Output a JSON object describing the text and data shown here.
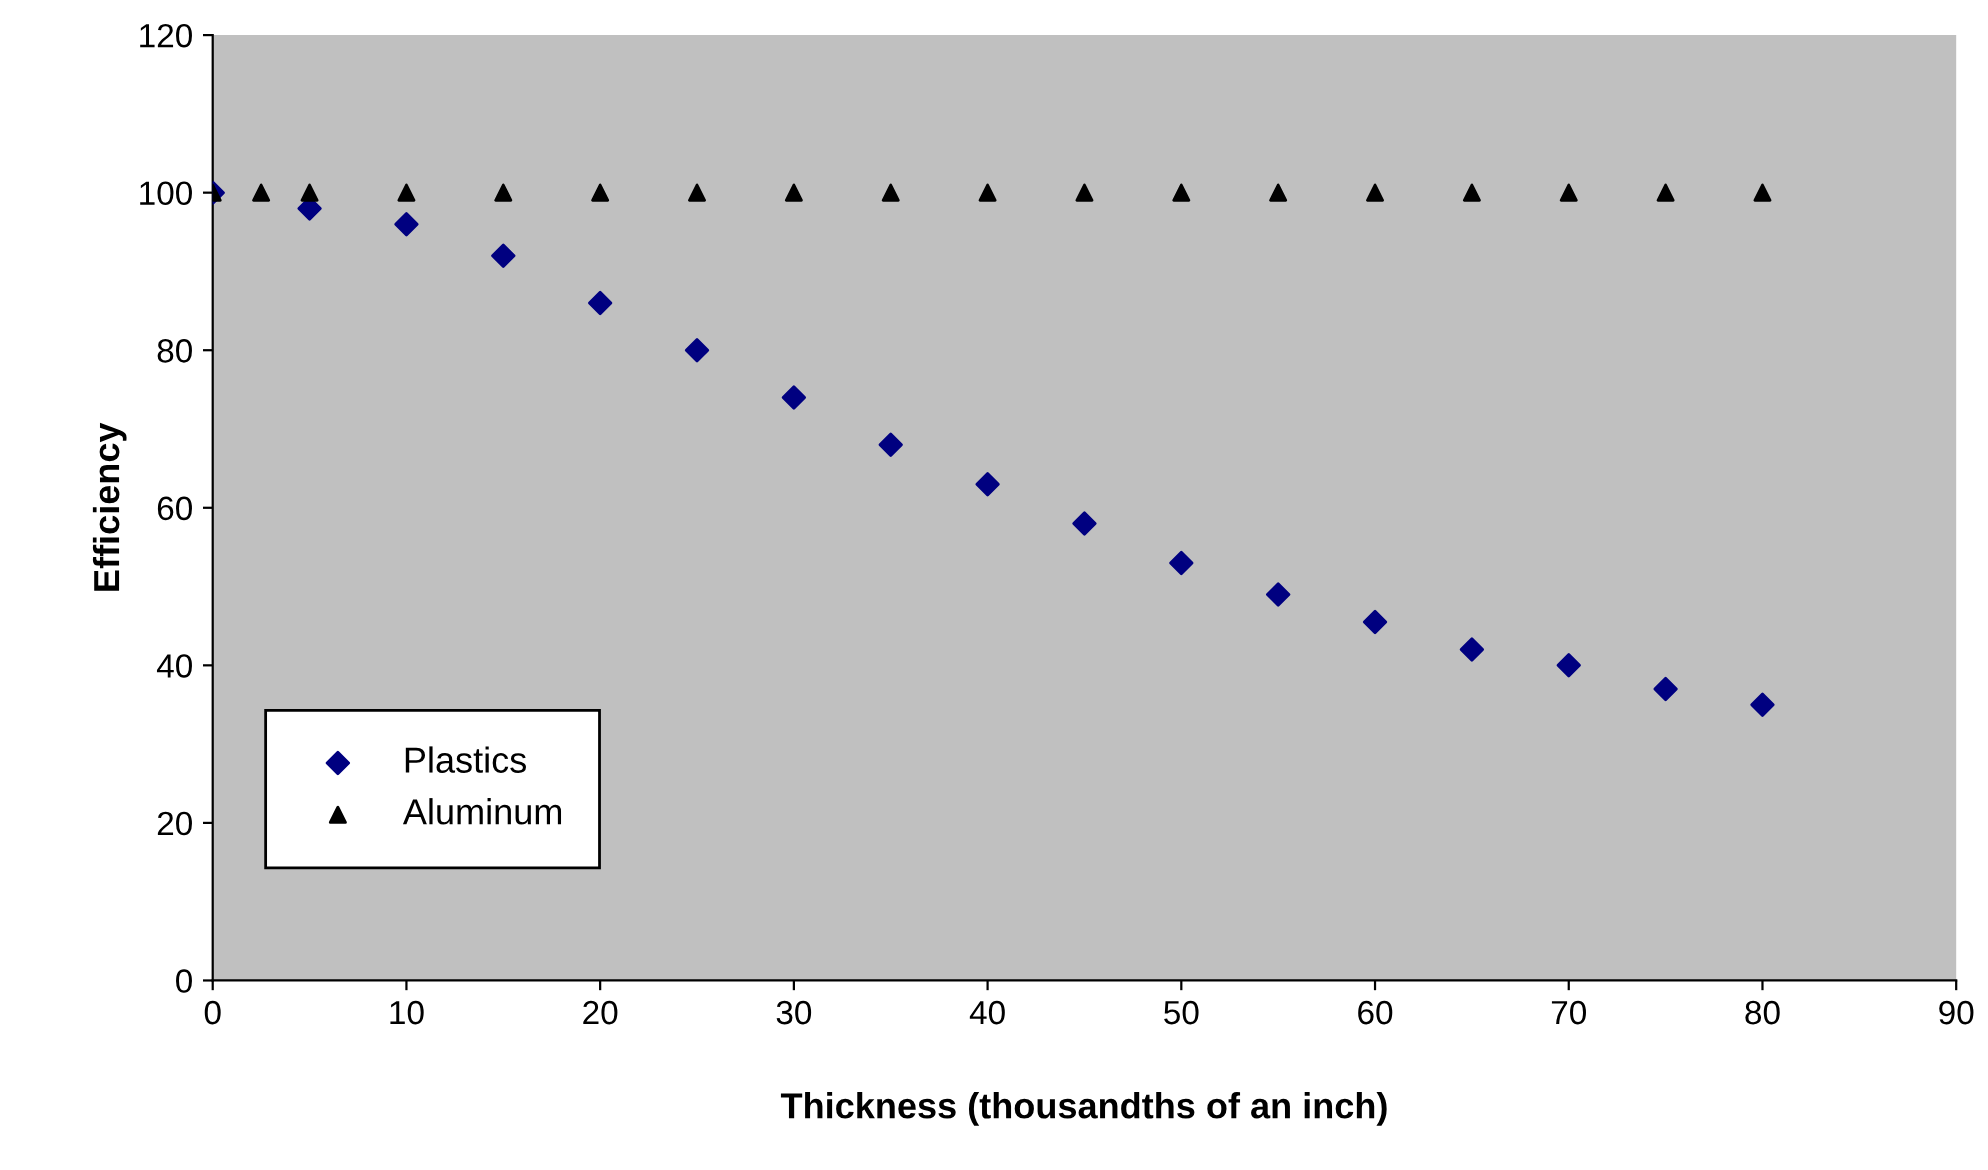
{
  "chart_data": {
    "type": "scatter",
    "xlabel": "Thickness (thousandths of an inch)",
    "ylabel": "Efficiency",
    "xlim": [
      0,
      90
    ],
    "xticks": [
      0,
      10,
      20,
      30,
      40,
      50,
      60,
      70,
      80,
      90
    ],
    "ylim": [
      0,
      120
    ],
    "yticks": [
      0,
      20,
      40,
      60,
      80,
      100,
      120
    ],
    "grid": false,
    "legend": "bottom left",
    "series": [
      {
        "name": "Plastics",
        "color": "#000080",
        "marker": "diamond",
        "x": [
          0,
          5,
          10,
          15,
          20,
          25,
          30,
          35,
          40,
          45,
          50,
          55,
          60,
          65,
          70,
          75,
          80
        ],
        "values": [
          100,
          98,
          96,
          92,
          86,
          80,
          74,
          68,
          63,
          58,
          53,
          49,
          45.5,
          42,
          40,
          37,
          35
        ]
      },
      {
        "name": "Aluminum",
        "color": "#000000",
        "marker": "triangle",
        "x": [
          0,
          2.5,
          5,
          10,
          15,
          20,
          25,
          30,
          35,
          40,
          45,
          50,
          55,
          60,
          65,
          70,
          75,
          80
        ],
        "values": [
          100,
          100,
          100,
          100,
          100,
          100,
          100,
          100,
          100,
          100,
          100,
          100,
          100,
          100,
          100,
          100,
          100,
          100
        ]
      }
    ]
  }
}
